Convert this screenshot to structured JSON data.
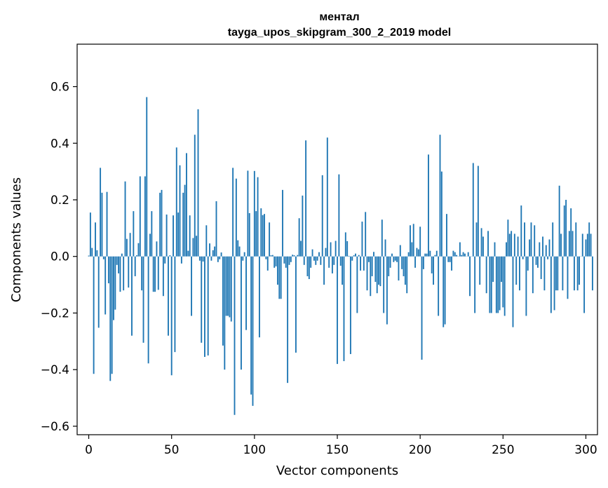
{
  "chart_data": {
    "type": "bar",
    "title": "ментал",
    "subtitle": "tayga_upos_skipgram_300_2_2019 model",
    "xlabel": "Vector components",
    "ylabel": "Components values",
    "xlim": [
      -7,
      307
    ],
    "ylim": [
      -0.63,
      0.75
    ],
    "xticks": [
      0,
      50,
      100,
      150,
      200,
      250,
      300
    ],
    "xtick_labels": [
      "0",
      "50",
      "100",
      "150",
      "200",
      "250",
      "300"
    ],
    "yticks": [
      -0.6,
      -0.4,
      -0.2,
      0.0,
      0.2,
      0.4,
      0.6
    ],
    "ytick_labels": [
      "−0.6",
      "−0.4",
      "−0.2",
      "0.0",
      "0.2",
      "0.4",
      "0.6"
    ],
    "grid": false,
    "color": "#1f77b4",
    "values": [
      0.003,
      0.155,
      0.03,
      -0.415,
      0.12,
      0.022,
      -0.252,
      0.313,
      0.225,
      -0.01,
      -0.205,
      0.228,
      -0.095,
      -0.44,
      -0.415,
      -0.225,
      -0.188,
      -0.03,
      -0.06,
      -0.125,
      0.01,
      -0.12,
      0.265,
      0.062,
      -0.11,
      0.083,
      -0.28,
      0.16,
      -0.07,
      0.004,
      0.047,
      0.283,
      -0.12,
      -0.305,
      0.283,
      0.563,
      -0.378,
      0.08,
      0.16,
      -0.125,
      -0.125,
      0.053,
      -0.118,
      0.225,
      0.235,
      -0.14,
      -0.025,
      0.148,
      -0.28,
      0.004,
      -0.42,
      0.145,
      -0.338,
      0.385,
      0.155,
      0.322,
      -0.025,
      0.225,
      0.253,
      0.365,
      0.02,
      0.145,
      -0.21,
      0.065,
      0.43,
      0.073,
      0.52,
      -0.015,
      -0.305,
      -0.018,
      -0.355,
      0.11,
      -0.35,
      0.046,
      -0.015,
      0.022,
      0.035,
      0.195,
      -0.02,
      -0.01,
      0.014,
      -0.315,
      -0.4,
      -0.21,
      -0.21,
      -0.215,
      -0.23,
      0.313,
      -0.56,
      0.275,
      0.057,
      0.035,
      -0.4,
      -0.015,
      0.015,
      -0.26,
      0.303,
      0.153,
      -0.488,
      -0.528,
      0.302,
      0.16,
      0.28,
      -0.286,
      0.17,
      0.146,
      0.15,
      -0.01,
      -0.05,
      0.12,
      0.004,
      0.005,
      -0.04,
      -0.035,
      -0.1,
      -0.15,
      -0.15,
      0.235,
      -0.025,
      -0.04,
      -0.447,
      -0.03,
      -0.02,
      0.006,
      0.004,
      -0.34,
      0.005,
      0.135,
      0.055,
      0.215,
      -0.03,
      0.41,
      -0.07,
      -0.08,
      -0.04,
      0.025,
      -0.015,
      -0.03,
      -0.015,
      0.015,
      -0.03,
      0.287,
      -0.1,
      0.03,
      0.42,
      -0.04,
      0.05,
      -0.06,
      -0.03,
      0.055,
      -0.38,
      0.29,
      -0.033,
      -0.1,
      -0.37,
      0.085,
      0.054,
      0.002,
      -0.345,
      -0.015,
      0.004,
      0.01,
      -0.2,
      0.005,
      -0.05,
      0.123,
      -0.05,
      0.157,
      -0.12,
      -0.02,
      -0.14,
      -0.07,
      0.016,
      -0.09,
      -0.13,
      -0.1,
      -0.105,
      0.13,
      -0.2,
      0.06,
      -0.24,
      -0.07,
      -0.04,
      0.01,
      -0.02,
      -0.015,
      -0.02,
      -0.085,
      0.04,
      -0.045,
      -0.07,
      -0.1,
      -0.13,
      0.015,
      0.11,
      0.05,
      0.115,
      -0.04,
      0.03,
      0.025,
      0.105,
      -0.365,
      -0.045,
      0.01,
      0.01,
      0.36,
      0.02,
      -0.06,
      -0.1,
      0.005,
      0.02,
      -0.21,
      0.43,
      0.3,
      -0.25,
      -0.24,
      0.15,
      -0.02,
      -0.02,
      -0.05,
      0.02,
      0.015,
      0.005,
      0.0,
      0.05,
      0.005,
      0.015,
      0.01,
      0.0,
      0.015,
      -0.14,
      0.0,
      0.33,
      -0.2,
      0.12,
      0.32,
      -0.1,
      0.1,
      0.07,
      0.0,
      -0.13,
      0.09,
      -0.2,
      -0.2,
      -0.09,
      0.05,
      -0.2,
      -0.2,
      -0.19,
      -0.09,
      -0.18,
      -0.21,
      0.05,
      0.13,
      0.08,
      0.09,
      -0.25,
      0.08,
      -0.1,
      0.07,
      -0.12,
      0.18,
      -0.01,
      0.12,
      -0.21,
      -0.05,
      0.06,
      0.12,
      -0.13,
      0.11,
      -0.03,
      -0.04,
      0.05,
      -0.08,
      0.07,
      -0.12,
      0.04,
      -0.01,
      0.06,
      -0.2,
      0.12,
      -0.19,
      -0.12,
      -0.12,
      0.25,
      0.08,
      -0.12,
      0.18,
      0.2,
      -0.15,
      0.09,
      0.17,
      0.09,
      -0.12,
      0.12,
      -0.12,
      -0.1,
      0.0,
      0.08,
      -0.2,
      0.06,
      0.08,
      0.12,
      0.08,
      -0.12
    ]
  }
}
